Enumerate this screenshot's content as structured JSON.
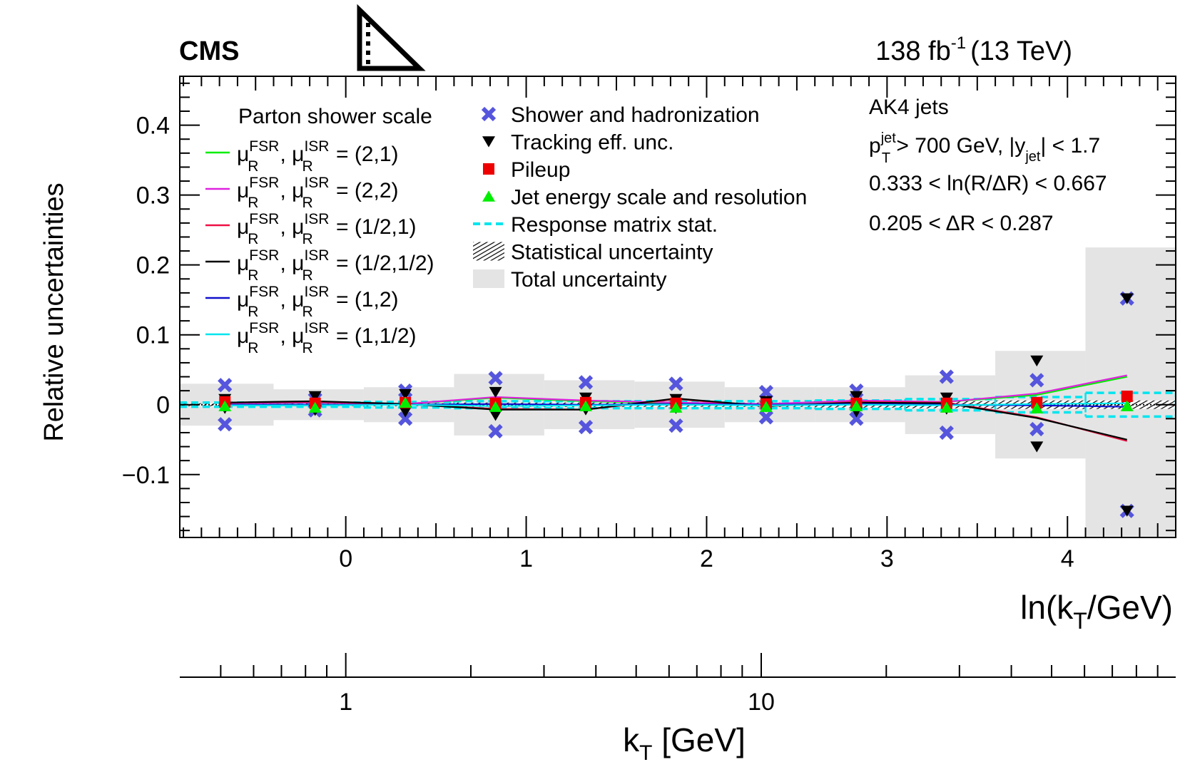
{
  "header": {
    "experiment": "CMS",
    "lumi_value": "138 fb",
    "lumi_exp": "-1",
    "energy": "(13 TeV)"
  },
  "chart_data": {
    "type": "scatter",
    "ylabel": "Relative uncertainties",
    "xlabel_main": "ln(k",
    "xlabel_main_sub": "T",
    "xlabel_main_tail": "/GeV)",
    "xlabel_secondary": "k",
    "xlabel_secondary_sub": "T",
    "xlabel_secondary_tail": " [GeV]",
    "xlim": [
      -0.92,
      4.6
    ],
    "ylim": [
      -0.19,
      0.47
    ],
    "x_ticks": [
      0,
      1,
      2,
      3,
      4
    ],
    "x_tick_labels": [
      "0",
      "1",
      "2",
      "3",
      "4"
    ],
    "y_ticks": [
      -0.1,
      0,
      0.1,
      0.2,
      0.3,
      0.4
    ],
    "y_tick_labels": [
      "−0.1",
      "0",
      "0.1",
      "0.2",
      "0.3",
      "0.4"
    ],
    "secondary_ticks_major": [
      1,
      10
    ],
    "secondary_tick_labels": [
      "1",
      "10"
    ],
    "secondary_ticks_minor": [
      0.5,
      0.6,
      0.7,
      0.8,
      0.9,
      2,
      3,
      4,
      5,
      6,
      7,
      8,
      9,
      20,
      30,
      40,
      50,
      60,
      70,
      80,
      90
    ],
    "info": {
      "jets": "AK4 jets",
      "cut_pt_p": "p",
      "cut_pt_sup": "jet",
      "cut_pt_sub": "T",
      "cut_pt_mid": " > 700 GeV, |y",
      "cut_pt_ysub": "jet",
      "cut_pt_tail": "| < 1.7",
      "cut_lnR": "0.333 < ln(R/ΔR) < 0.667",
      "cut_dR": "0.205 < ΔR < 0.287"
    },
    "bin_edges": [
      -0.92,
      -0.4,
      0.1,
      0.6,
      1.1,
      1.6,
      2.1,
      2.6,
      3.1,
      3.6,
      4.1,
      4.6
    ],
    "bin_centers": [
      -0.67,
      -0.17,
      0.33,
      0.83,
      1.33,
      1.83,
      2.33,
      2.83,
      3.33,
      3.83,
      4.33
    ],
    "total_uncertainty": [
      0.03,
      0.022,
      0.025,
      0.044,
      0.035,
      0.033,
      0.025,
      0.025,
      0.042,
      0.077,
      0.225
    ],
    "shower_hadronization": [
      0.028,
      0.008,
      0.02,
      0.038,
      0.032,
      0.03,
      0.018,
      0.02,
      0.04,
      0.035,
      0.152
    ],
    "tracking_up": [
      0.008,
      0.012,
      0.015,
      0.018,
      0.01,
      0.008,
      0.005,
      0.012,
      0.01,
      0.063,
      0.152
    ],
    "tracking_down": [
      -0.005,
      -0.008,
      -0.01,
      -0.015,
      -0.007,
      -0.005,
      -0.003,
      -0.01,
      -0.006,
      -0.06,
      -0.152
    ],
    "pileup": [
      0.004,
      0.002,
      0.003,
      0.002,
      0.003,
      0.002,
      0.001,
      0.002,
      0.002,
      0.003,
      0.012
    ],
    "jes_jer": [
      -0.002,
      -0.004,
      0.003,
      -0.003,
      -0.002,
      -0.004,
      -0.003,
      -0.002,
      -0.004,
      -0.005,
      -0.002
    ],
    "response_matrix_stat": [
      0.003,
      0.003,
      0.004,
      0.005,
      0.005,
      0.005,
      0.005,
      0.006,
      0.008,
      0.011,
      0.017
    ],
    "statistical": [
      0.002,
      0.002,
      0.002,
      0.003,
      0.003,
      0.003,
      0.003,
      0.004,
      0.005,
      0.006,
      0.006
    ],
    "parton_shower_title": "Parton shower scale",
    "series": [
      {
        "name": "(2,1)",
        "color": "#00ee00",
        "values": [
          0.002,
          0.003,
          0.001,
          0.01,
          0.005,
          0.002,
          0.001,
          0.005,
          0.004,
          0.014,
          0.04
        ]
      },
      {
        "name": "(2,2)",
        "color": "#dd22dd",
        "values": [
          0.002,
          0.003,
          0.001,
          0.011,
          0.006,
          0.003,
          0.001,
          0.006,
          0.004,
          0.016,
          0.042
        ]
      },
      {
        "name": "(1/2,1)",
        "color": "#ee1144",
        "values": [
          0.003,
          0.004,
          0.001,
          -0.006,
          -0.007,
          0.008,
          -0.002,
          0.004,
          0.003,
          -0.018,
          -0.052
        ]
      },
      {
        "name": "(1/2,1/2)",
        "color": "#000000",
        "values": [
          0.003,
          0.005,
          0.001,
          -0.007,
          -0.007,
          0.009,
          -0.002,
          0.003,
          0.002,
          -0.019,
          -0.05
        ]
      },
      {
        "name": "(1,2)",
        "color": "#1010cc",
        "values": [
          0.0,
          0.0,
          0.0,
          0.001,
          0.0,
          0.001,
          0.0,
          0.001,
          0.0,
          -0.001,
          -0.003
        ]
      },
      {
        "name": "(1,1/2)",
        "color": "#00e5ee",
        "values": [
          -0.001,
          -0.001,
          0.0,
          -0.002,
          -0.001,
          0.0,
          -0.001,
          0.0,
          -0.001,
          0.001,
          0.002
        ]
      }
    ],
    "legend_right": [
      {
        "name": "Shower and hadronization",
        "marker": "cross",
        "color": "#5555dd"
      },
      {
        "name": "Tracking eff. unc.",
        "marker": "triangle-down",
        "color": "#000000"
      },
      {
        "name": "Pileup",
        "marker": "square",
        "color": "#ee0000"
      },
      {
        "name": "Jet energy scale and resolution",
        "marker": "triangle-up",
        "color": "#00ee00"
      },
      {
        "name": "Response matrix stat.",
        "marker": "dashed",
        "color": "#00e5ee"
      },
      {
        "name": "Statistical uncertainty",
        "marker": "hatch",
        "color": "#000000"
      },
      {
        "name": "Total uncertainty",
        "marker": "band",
        "color": "#e4e4e4"
      }
    ],
    "mu_label": "μ",
    "mu_sup_fsr": "FSR",
    "mu_sup_isr": "ISR",
    "mu_sub": "R",
    "mu_sep": ", ",
    "mu_eq": " = "
  }
}
